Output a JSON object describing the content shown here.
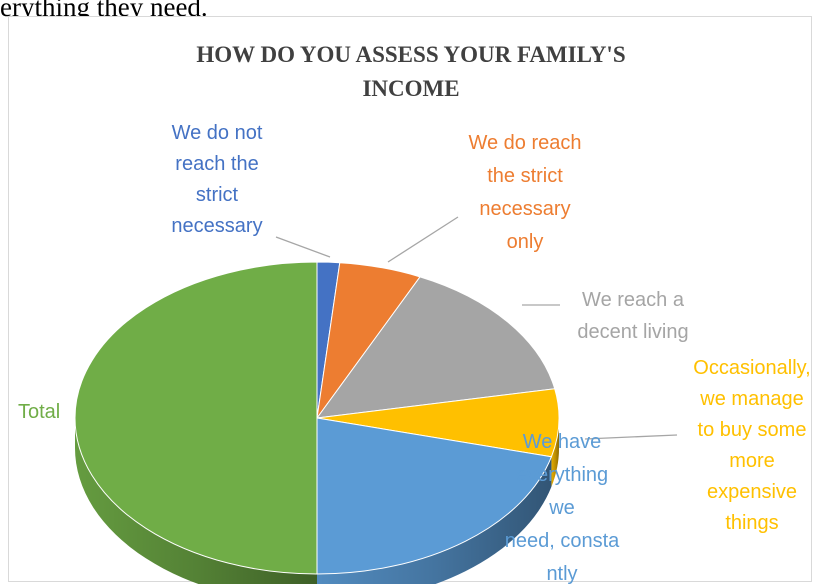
{
  "intro_text": "erything they need.",
  "chart_data": {
    "type": "pie",
    "title_lines": [
      "HOW DO YOU ASSESS YOUR FAMILY'S",
      "INCOME"
    ],
    "slices": [
      {
        "label_lines": [
          "We do not",
          "reach the",
          "strict",
          "necessary"
        ],
        "value": 1.5,
        "color": "#4472c4",
        "label_color": "#4472c4"
      },
      {
        "label_lines": [
          "We do reach",
          "the strict",
          "necessary",
          "only"
        ],
        "value": 5.5,
        "color": "#ed7d31",
        "label_color": "#ed7d31"
      },
      {
        "label_lines": [
          "We reach a",
          "decent living"
        ],
        "value": 15,
        "color": "#a5a5a5",
        "label_color": "#a5a5a5"
      },
      {
        "label_lines": [
          "Occasionally,",
          "we manage",
          "to buy some",
          "more",
          "expensive",
          "things"
        ],
        "value": 7,
        "color": "#ffc000",
        "label_color": "#ffc000"
      },
      {
        "label_lines": [
          "We have",
          "everything",
          "we",
          "need, consta",
          "ntly"
        ],
        "value": 21,
        "color": "#5b9bd5",
        "label_color": "#5b9bd5"
      },
      {
        "label_lines": [
          "Total"
        ],
        "value": 50,
        "color": "#70ad47",
        "label_color": "#70ad47"
      }
    ]
  }
}
